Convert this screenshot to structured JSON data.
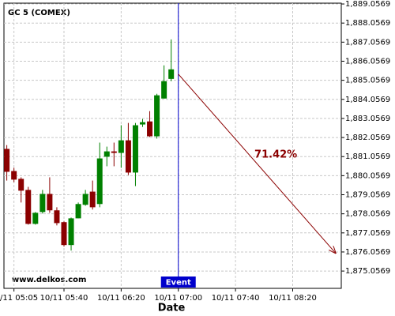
{
  "chart_data": {
    "type": "candlestick",
    "title": "GC 5 (COMEX)",
    "x_label": "Date",
    "watermark": "www.delkos.com",
    "x": [
      "10/11 05:00",
      "10/11 05:05",
      "10/11 05:10",
      "10/11 05:15",
      "10/11 05:20",
      "10/11 05:25",
      "10/11 05:30",
      "10/11 05:35",
      "10/11 05:40",
      "10/11 05:45",
      "10/11 05:50",
      "10/11 05:55",
      "10/11 06:00",
      "10/11 06:05",
      "10/11 06:10",
      "10/11 06:15",
      "10/11 06:20",
      "10/11 06:25",
      "10/11 06:30",
      "10/11 06:35",
      "10/11 06:40",
      "10/11 06:45",
      "10/11 06:50",
      "10/11 06:55"
    ],
    "open": [
      1881.46,
      1880.3,
      1879.89,
      1879.31,
      1877.53,
      1878.15,
      1879.1,
      1878.24,
      1877.62,
      1876.42,
      1877.82,
      1878.53,
      1879.22,
      1878.57,
      1881.05,
      1881.33,
      1881.25,
      1881.91,
      1880.22,
      1882.74,
      1882.9,
      1882.12,
      1884.1,
      1885.13
    ],
    "high": [
      1881.66,
      1880.47,
      1879.97,
      1879.47,
      1878.15,
      1879.31,
      1879.97,
      1878.4,
      1877.66,
      1877.86,
      1878.65,
      1879.31,
      1879.8,
      1881.79,
      1881.58,
      1881.79,
      1882.7,
      1882.82,
      1882.82,
      1883.03,
      1883.44,
      1884.35,
      1885.84,
      1887.2
    ],
    "low": [
      1879.8,
      1879.72,
      1878.65,
      1877.49,
      1877.49,
      1878.07,
      1878.11,
      1877.45,
      1876.34,
      1876.13,
      1877.82,
      1878.48,
      1878.28,
      1878.4,
      1880.55,
      1880.55,
      1880.47,
      1880.09,
      1879.51,
      1882.61,
      1882.08,
      1882.0,
      1884.1,
      1885.01
    ],
    "close": [
      1880.26,
      1879.85,
      1879.27,
      1877.53,
      1878.11,
      1879.1,
      1878.24,
      1877.57,
      1876.42,
      1877.82,
      1878.57,
      1879.1,
      1878.4,
      1880.96,
      1881.33,
      1881.25,
      1881.91,
      1880.22,
      1882.7,
      1882.86,
      1882.12,
      1884.27,
      1885.01,
      1885.63
    ],
    "up_color": "#008000",
    "down_color": "#8b0000",
    "xlim": [
      "10/11 04:58",
      "10/11 08:54"
    ],
    "xticks": [
      "10/11 05:05",
      "10/11 05:40",
      "10/11 06:20",
      "10/11 07:00",
      "10/11 07:40",
      "10/11 08:20"
    ],
    "ylim": [
      1874.15,
      1889.1
    ],
    "yticks": [
      {
        "value": 1875.0569,
        "label": "1,875.0569"
      },
      {
        "value": 1876.0569,
        "label": "1,876.0569"
      },
      {
        "value": 1877.0569,
        "label": "1,877.0569"
      },
      {
        "value": 1878.0569,
        "label": "1,878.0569"
      },
      {
        "value": 1879.0569,
        "label": "1,879.0569"
      },
      {
        "value": 1880.0569,
        "label": "1,880.0569"
      },
      {
        "value": 1881.0569,
        "label": "1,881.0569"
      },
      {
        "value": 1882.0569,
        "label": "1,882.0569"
      },
      {
        "value": 1883.0569,
        "label": "1,883.0569"
      },
      {
        "value": 1884.0569,
        "label": "1,884.0569"
      },
      {
        "value": 1885.0569,
        "label": "1,885.0569"
      },
      {
        "value": 1886.0569,
        "label": "1,886.0569"
      },
      {
        "value": 1887.0569,
        "label": "1,887.0569"
      },
      {
        "value": 1888.0569,
        "label": "1,888.0569"
      },
      {
        "value": 1889.0569,
        "label": "1,889.0569"
      }
    ],
    "grid": true,
    "event": {
      "x": "10/11 07:00",
      "label": "Event",
      "color": "#0000cc"
    },
    "projection": {
      "x": [
        "10/11 07:00",
        "10/11 08:50"
      ],
      "values": [
        1885.38,
        1876.0
      ],
      "label": "71.42%",
      "color": "#8b0000"
    }
  }
}
